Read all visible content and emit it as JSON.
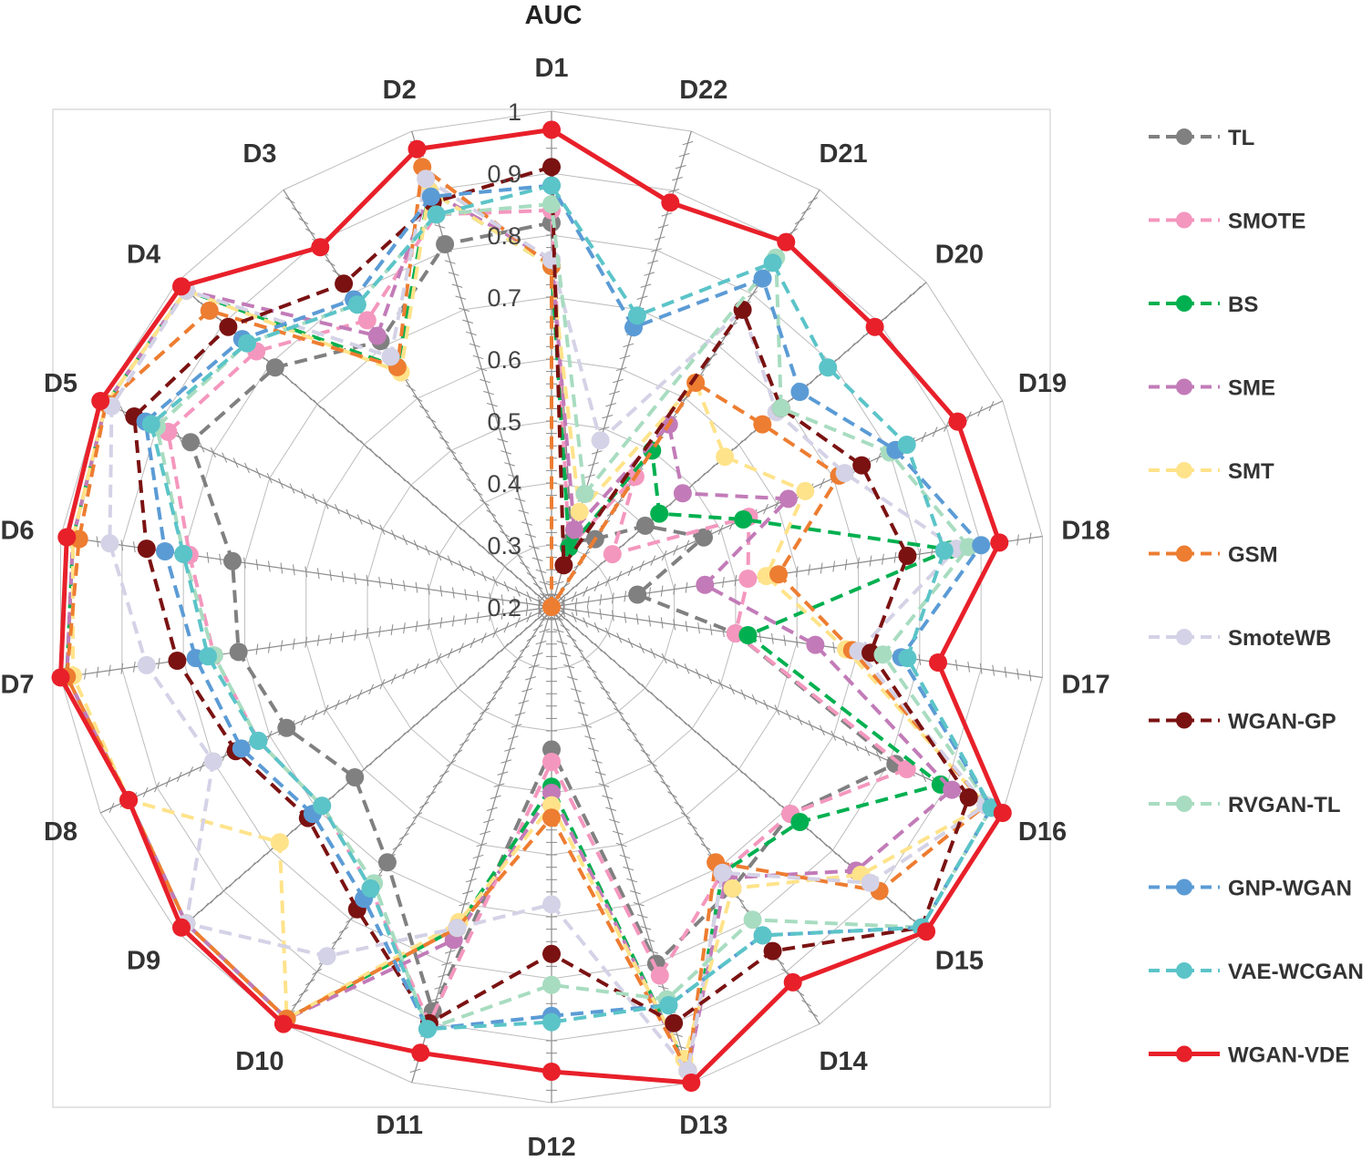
{
  "chart_data": {
    "type": "radar",
    "title": "AUC",
    "axes": [
      "D1",
      "D2",
      "D3",
      "D4",
      "D5",
      "D6",
      "D7",
      "D8",
      "D9",
      "D10",
      "D11",
      "D12",
      "D13",
      "D14",
      "D15",
      "D16",
      "D17",
      "D18",
      "D19",
      "D20",
      "D21",
      "D22"
    ],
    "radial_range": [
      0.2,
      1.0
    ],
    "radial_ticks": [
      "0.2",
      "0.3",
      "0.4",
      "0.5",
      "0.6",
      "0.7",
      "0.8",
      "0.9",
      "1"
    ],
    "grid": true,
    "legend_placement": "right",
    "series": [
      {
        "name": "TL",
        "color": "#808080",
        "dashed": true,
        "values": [
          0.82,
          0.81,
          0.71,
          0.79,
          0.84,
          0.72,
          0.71,
          0.67,
          0.62,
          0.69,
          0.88,
          0.43,
          0.8,
          0.74,
          0.71,
          0.81,
          0.5,
          0.34,
          0.47,
          0.4,
          0.33,
          0.31
        ]
      },
      {
        "name": "SMOTE",
        "color": "#f497be",
        "dashed": true,
        "values": [
          0.84,
          0.86,
          0.75,
          0.83,
          0.88,
          0.79,
          0.75,
          0.72,
          0.69,
          0.74,
          0.9,
          0.45,
          0.82,
          0.71,
          0.71,
          0.83,
          0.5,
          0.52,
          0.55,
          0.33,
          0.45,
          0.3
        ]
      },
      {
        "name": "BS",
        "color": "#00b050",
        "dashed": true,
        "values": [
          0.75,
          0.9,
          0.66,
          0.98,
          0.99,
          0.98,
          0.99,
          0.95,
          0.98,
          0.99,
          0.74,
          0.49,
          0.98,
          0.71,
          0.73,
          0.89,
          0.52,
          0.85,
          0.54,
          0.43,
          0.5,
          0.3
        ]
      },
      {
        "name": "SME",
        "color": "#c27bb8",
        "dashed": true,
        "values": [
          0.76,
          0.9,
          0.72,
          0.98,
          0.99,
          0.98,
          0.99,
          0.95,
          0.98,
          0.99,
          0.76,
          0.5,
          0.98,
          0.72,
          0.85,
          0.91,
          0.63,
          0.45,
          0.62,
          0.48,
          0.55,
          0.33
        ]
      },
      {
        "name": "SMT",
        "color": "#ffe38a",
        "dashed": true,
        "values": [
          0.75,
          0.9,
          0.65,
          0.98,
          0.99,
          0.98,
          0.98,
          0.95,
          0.78,
          0.99,
          0.73,
          0.52,
          0.96,
          0.74,
          0.86,
          0.97,
          0.68,
          0.55,
          0.65,
          0.57,
          0.63,
          0.36
        ]
      },
      {
        "name": "GSM",
        "color": "#ed7d31",
        "dashed": true,
        "values": [
          0.75,
          0.94,
          0.66,
          0.93,
          0.99,
          0.97,
          0.99,
          0.95,
          0.98,
          0.99,
          0.74,
          0.54,
          0.98,
          0.69,
          0.9,
          0.97,
          0.69,
          0.57,
          0.71,
          0.65,
          0.63,
          0.2
        ]
      },
      {
        "name": "SmoteWB",
        "color": "#d4d2e6",
        "dashed": true,
        "values": [
          0.76,
          0.92,
          0.68,
          0.98,
          0.98,
          0.92,
          0.86,
          0.8,
          0.98,
          0.87,
          0.74,
          0.68,
          0.98,
          0.71,
          0.88,
          0.97,
          0.7,
          0.86,
          0.72,
          0.68,
          0.77,
          0.48
        ]
      },
      {
        "name": "WGAN-GP",
        "color": "#7b1212",
        "dashed": true,
        "values": [
          0.91,
          0.88,
          0.82,
          0.89,
          0.94,
          0.86,
          0.81,
          0.76,
          0.72,
          0.78,
          0.9,
          0.76,
          0.9,
          0.86,
          0.99,
          0.94,
          0.72,
          0.78,
          0.75,
          0.69,
          0.77,
          0.27
        ]
      },
      {
        "name": "RVGAN-TL",
        "color": "#a8dcc0",
        "dashed": true,
        "values": [
          0.85,
          0.86,
          0.78,
          0.85,
          0.9,
          0.8,
          0.75,
          0.72,
          0.69,
          0.73,
          0.91,
          0.81,
          0.86,
          0.8,
          0.99,
          0.98,
          0.74,
          0.88,
          0.8,
          0.69,
          0.87,
          0.39
        ]
      },
      {
        "name": "GNP-WGAN",
        "color": "#5b9bd5",
        "dashed": true,
        "values": [
          0.88,
          0.89,
          0.79,
          0.86,
          0.92,
          0.83,
          0.78,
          0.75,
          0.71,
          0.76,
          0.91,
          0.86,
          0.87,
          0.83,
          0.99,
          0.98,
          0.77,
          0.9,
          0.81,
          0.73,
          0.83,
          0.67
        ]
      },
      {
        "name": "VAE-WCGAN",
        "color": "#5bc4c8",
        "dashed": true,
        "values": [
          0.88,
          0.86,
          0.78,
          0.85,
          0.91,
          0.8,
          0.76,
          0.72,
          0.69,
          0.74,
          0.91,
          0.87,
          0.87,
          0.83,
          0.99,
          0.98,
          0.78,
          0.84,
          0.83,
          0.79,
          0.86,
          0.69
        ]
      },
      {
        "name": "WGAN-VDE",
        "color": "#e8202a",
        "dashed": false,
        "values": [
          0.97,
          0.97,
          0.89,
          0.99,
          1.0,
          0.99,
          1.0,
          0.95,
          0.99,
          1.0,
          0.95,
          0.95,
          1.0,
          0.92,
          1.0,
          1.0,
          0.83,
          0.93,
          0.92,
          0.89,
          0.9,
          0.88
        ]
      }
    ]
  }
}
